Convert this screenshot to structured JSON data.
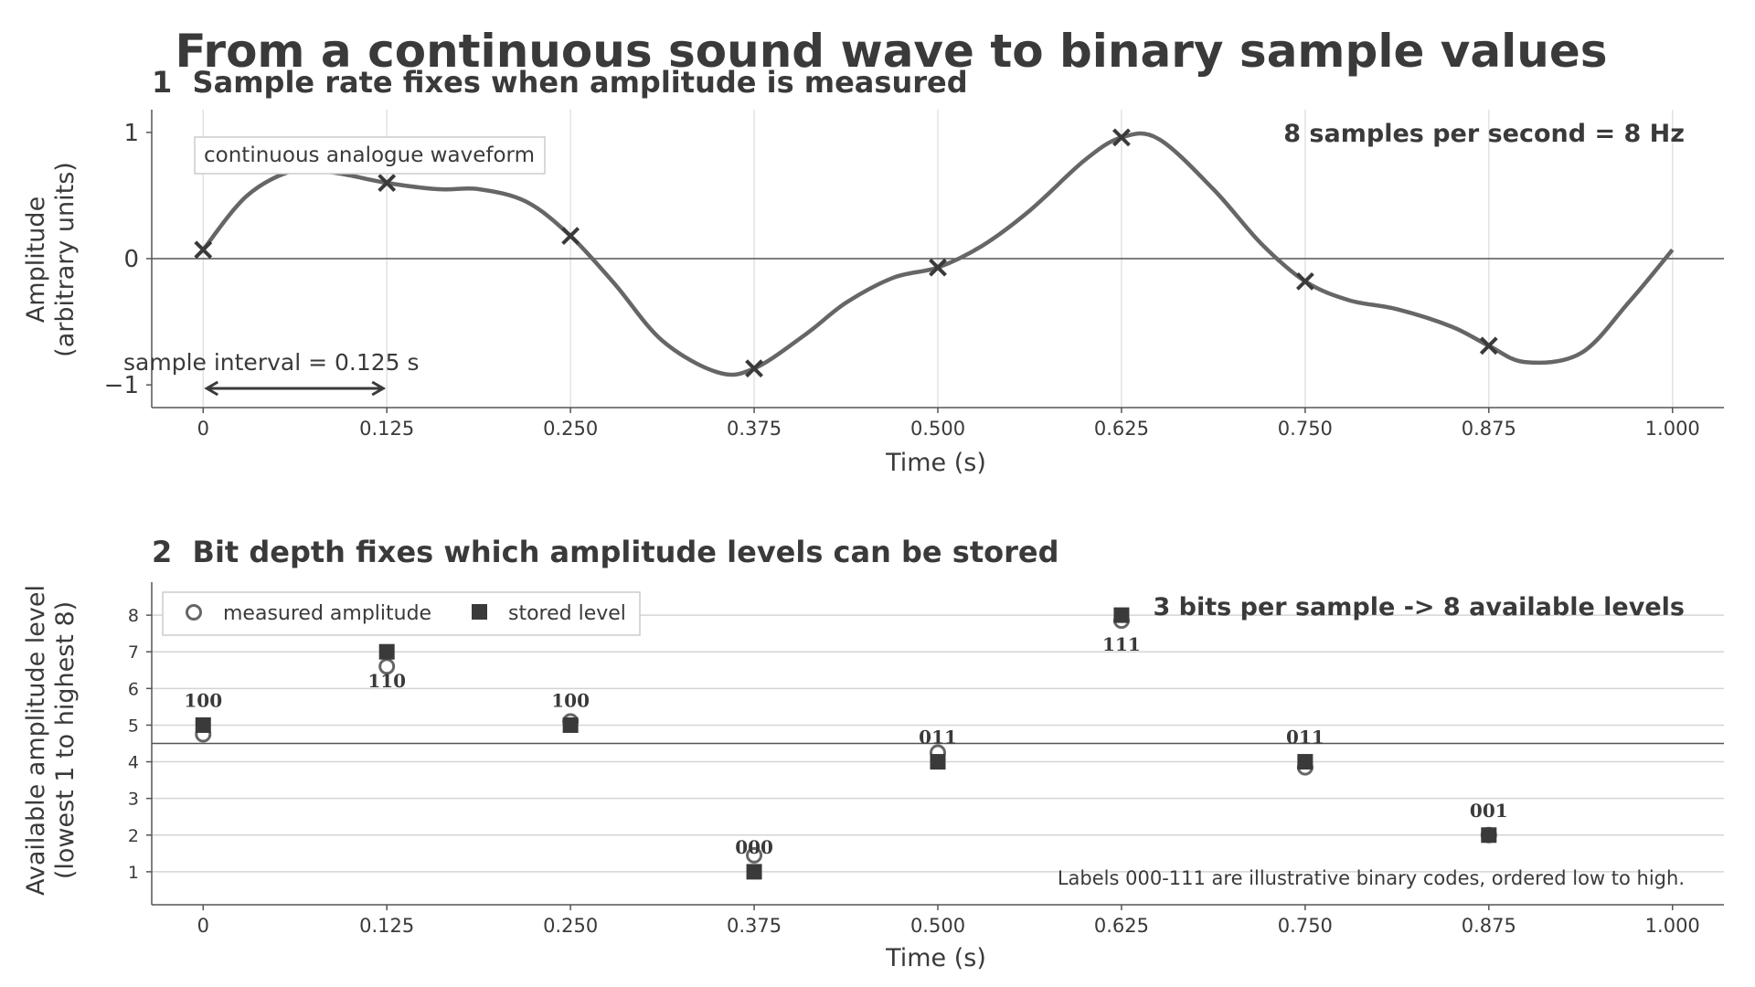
{
  "figure_title": "From a continuous sound wave to binary sample values",
  "colors": {
    "text": "#3a3a3a",
    "wave": "#666666",
    "marker": "#3a3a3a",
    "grid": "#d4d4d4",
    "axis": "#555555",
    "legend_border": "#cccccc"
  },
  "chart_data": [
    {
      "type": "line",
      "title": "1  Sample rate fixes when amplitude is measured",
      "xlabel": "Time (s)",
      "ylabel": "Amplitude\n(arbitrary units)",
      "xlim": [
        -0.035,
        1.035
      ],
      "ylim": [
        -1.18,
        1.18
      ],
      "x_ticks": [
        0,
        0.125,
        0.25,
        0.375,
        0.5,
        0.625,
        0.75,
        0.875,
        1.0
      ],
      "x_tick_labels": [
        "0",
        "0.125",
        "0.250",
        "0.375",
        "0.500",
        "0.625",
        "0.750",
        "0.875",
        "1.000"
      ],
      "y_ticks": [
        -1,
        0,
        1
      ],
      "y_tick_labels": [
        "−1",
        "0",
        "1"
      ],
      "grid": "vertical lines at sample times",
      "series": [
        {
          "name": "continuous analogue waveform",
          "x": [
            0,
            0.03,
            0.0625,
            0.09,
            0.125,
            0.16,
            0.1875,
            0.22,
            0.25,
            0.28,
            0.3125,
            0.35,
            0.375,
            0.41,
            0.4375,
            0.47,
            0.5,
            0.53,
            0.5625,
            0.6,
            0.625,
            0.65,
            0.6875,
            0.72,
            0.75,
            0.78,
            0.8125,
            0.85,
            0.875,
            0.9,
            0.9375,
            0.97,
            1.0
          ],
          "y": [
            0.07,
            0.5,
            0.7,
            0.68,
            0.6,
            0.55,
            0.55,
            0.45,
            0.18,
            -0.2,
            -0.65,
            -0.9,
            -0.87,
            -0.6,
            -0.35,
            -0.15,
            -0.07,
            0.1,
            0.38,
            0.78,
            0.96,
            0.95,
            0.55,
            0.12,
            -0.18,
            -0.33,
            -0.4,
            -0.54,
            -0.69,
            -0.82,
            -0.75,
            -0.35,
            0.07
          ]
        },
        {
          "name": "samples",
          "x": [
            0,
            0.125,
            0.25,
            0.375,
            0.5,
            0.625,
            0.75,
            0.875
          ],
          "y": [
            0.07,
            0.6,
            0.18,
            -0.87,
            -0.07,
            0.96,
            -0.18,
            -0.69
          ]
        }
      ],
      "annotations": {
        "waveform_label": "continuous analogue waveform",
        "rate_label": "8 samples per second = 8 Hz",
        "interval_label": "sample interval = 0.125 s",
        "interval": [
          0,
          0.125
        ]
      }
    },
    {
      "type": "scatter",
      "title": "2  Bit depth fixes which amplitude levels can be stored",
      "xlabel": "Time (s)",
      "ylabel": "Available amplitude level\n(lowest 1 to highest 8)",
      "xlim": [
        -0.035,
        1.035
      ],
      "ylim": [
        0.1,
        8.9
      ],
      "x_ticks": [
        0,
        0.125,
        0.25,
        0.375,
        0.5,
        0.625,
        0.75,
        0.875,
        1.0
      ],
      "x_tick_labels": [
        "0",
        "0.125",
        "0.250",
        "0.375",
        "0.500",
        "0.625",
        "0.750",
        "0.875",
        "1.000"
      ],
      "y_ticks": [
        1,
        2,
        3,
        4,
        5,
        6,
        7,
        8
      ],
      "y_tick_labels": [
        "1",
        "2",
        "3",
        "4",
        "5",
        "6",
        "7",
        "8"
      ],
      "grid": "horizontal lines at levels",
      "midline": 4.5,
      "legend": "top-left",
      "series": [
        {
          "name": "measured amplitude",
          "x": [
            0,
            0.125,
            0.25,
            0.375,
            0.5,
            0.625,
            0.75,
            0.875
          ],
          "y": [
            4.75,
            6.6,
            5.1,
            1.45,
            4.25,
            7.85,
            3.85,
            2.0
          ]
        },
        {
          "name": "stored level",
          "x": [
            0,
            0.125,
            0.25,
            0.375,
            0.5,
            0.625,
            0.75,
            0.875
          ],
          "y": [
            5,
            7,
            5,
            1,
            4,
            8,
            4,
            2
          ]
        }
      ],
      "binary_labels": [
        "100",
        "110",
        "100",
        "000",
        "011",
        "111",
        "011",
        "001"
      ],
      "label_below": [
        false,
        true,
        false,
        false,
        false,
        true,
        false,
        false
      ],
      "annotations": {
        "bits_label": "3 bits per sample -> 8 available levels",
        "footnote": "Labels 000-111 are illustrative binary codes, ordered low to high."
      }
    }
  ]
}
